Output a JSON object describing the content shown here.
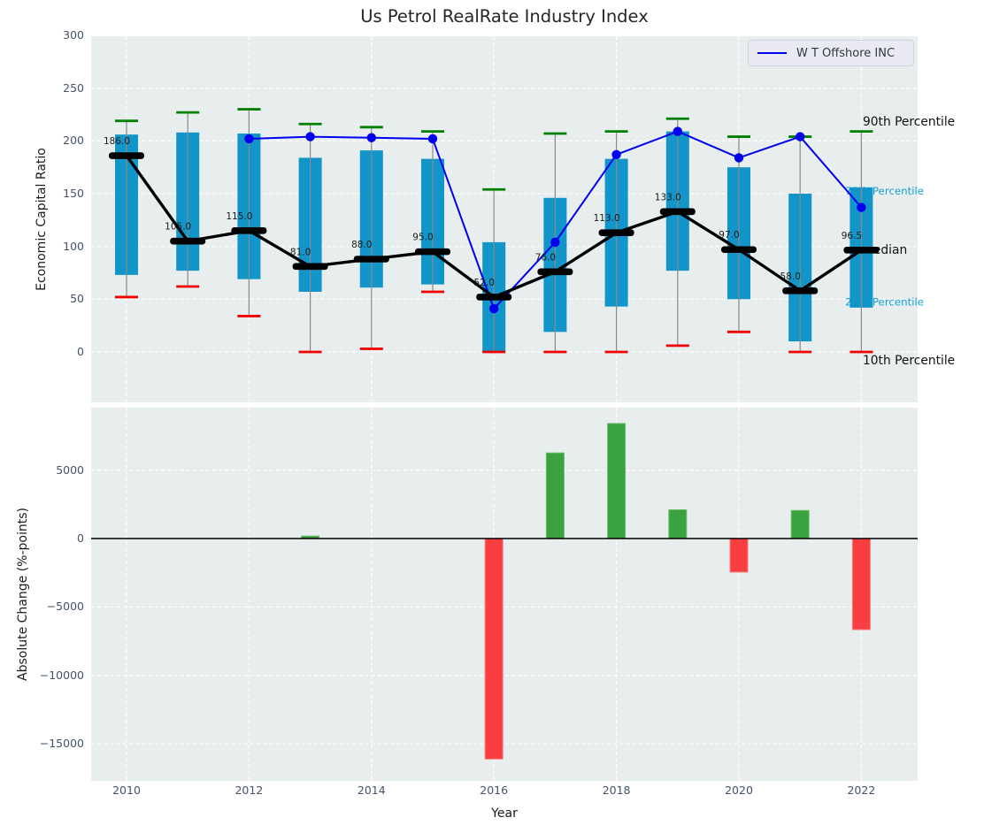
{
  "figure": {
    "title": "Us Petrol RealRate Industry Index",
    "legend": {
      "label": "W T Offshore INC"
    }
  },
  "colors": {
    "panel_bg": "#e8edee",
    "grid": "#ffffff",
    "box": "#1295c8",
    "whisker": "#898989",
    "p90_cap": "#008000",
    "p10_cap": "#f20000",
    "median": "#000000",
    "wt_line": "#0000ee",
    "bar_up": "#3aa23f",
    "bar_up_edge": "#6cbb6c",
    "bar_down": "#f93e41",
    "bar_down_edge": "#fb7a7a",
    "tick_text": "#44536a",
    "annotation_major": "#111111",
    "annotation_minor": "#17a3cf"
  },
  "chart_data": [
    {
      "type": "box-percentile-with-line",
      "title": "Us Petrol RealRate Industry Index",
      "ylabel": "Economic Capital Ratio",
      "ylim": [
        -47,
        300
      ],
      "grid": true,
      "legend_position": "upper right",
      "yticks": [
        {
          "v": 0,
          "label": "0"
        },
        {
          "v": 50,
          "label": "50"
        },
        {
          "v": 100,
          "label": "100"
        },
        {
          "v": 150,
          "label": "150"
        },
        {
          "v": 200,
          "label": "200"
        },
        {
          "v": 250,
          "label": "250"
        },
        {
          "v": 300,
          "label": "300"
        }
      ],
      "years": [
        2010,
        2011,
        2012,
        2013,
        2014,
        2015,
        2016,
        2017,
        2018,
        2019,
        2020,
        2021,
        2022
      ],
      "series": {
        "p90": [
          219,
          227,
          230,
          216,
          213,
          209,
          154,
          207,
          209,
          221,
          204,
          204,
          209
        ],
        "p75": [
          206,
          208,
          207,
          184,
          191,
          183,
          104,
          146,
          183,
          209,
          175,
          150,
          156
        ],
        "median": [
          186,
          105,
          115,
          81,
          88,
          95,
          52,
          76,
          113,
          133,
          97,
          58,
          96.5
        ],
        "p25": [
          73,
          77,
          69,
          57,
          61,
          64,
          0,
          19,
          43,
          77,
          50,
          10,
          42
        ],
        "p10": [
          52,
          62,
          34,
          0,
          3,
          57,
          0,
          0,
          0,
          6,
          19,
          0,
          0
        ]
      },
      "median_labels": [
        "186.0",
        "105.0",
        "115.0",
        "81.0",
        "88.0",
        "95.0",
        "52.0",
        "76.0",
        "113.0",
        "133.0",
        "97.0",
        "58.0",
        "96.5"
      ],
      "wt_offshore": {
        "name": "W T Offshore INC",
        "start_year": 2012,
        "values": [
          202,
          204,
          203,
          202,
          41,
          104,
          187,
          209,
          184,
          204,
          137
        ]
      },
      "annotations": [
        {
          "text": "90th Percentile",
          "value": 218,
          "style": "major"
        },
        {
          "text": "75th Percentile",
          "value": 152,
          "style": "minor"
        },
        {
          "text": "Median",
          "value": 96.5,
          "style": "major"
        },
        {
          "text": "25th Percentile",
          "value": 47,
          "style": "minor"
        },
        {
          "text": "10th Percentile",
          "value": -8.5,
          "style": "major"
        }
      ]
    },
    {
      "type": "bar",
      "ylabel": "Absolute Change (%-points)",
      "xlabel": "Year",
      "ylim": [
        -17700,
        9600
      ],
      "grid": true,
      "yticks": [
        {
          "v": 5000,
          "label": "5000"
        },
        {
          "v": 0,
          "label": "0"
        },
        {
          "v": -5000,
          "label": "−5000"
        },
        {
          "v": -10000,
          "label": "−10000"
        },
        {
          "v": -15000,
          "label": "−15000"
        }
      ],
      "xticks": [
        {
          "year": 2010,
          "label": "2010"
        },
        {
          "year": 2012,
          "label": "2012"
        },
        {
          "year": 2014,
          "label": "2014"
        },
        {
          "year": 2016,
          "label": "2016"
        },
        {
          "year": 2018,
          "label": "2018"
        },
        {
          "year": 2020,
          "label": "2020"
        },
        {
          "year": 2022,
          "label": "2022"
        }
      ],
      "categories": [
        2010,
        2011,
        2012,
        2013,
        2014,
        2015,
        2016,
        2017,
        2018,
        2019,
        2020,
        2021,
        2022
      ],
      "values": [
        0,
        0,
        0,
        180,
        0,
        0,
        -16100,
        6250,
        8400,
        2100,
        -2450,
        2050,
        -6650
      ]
    }
  ]
}
